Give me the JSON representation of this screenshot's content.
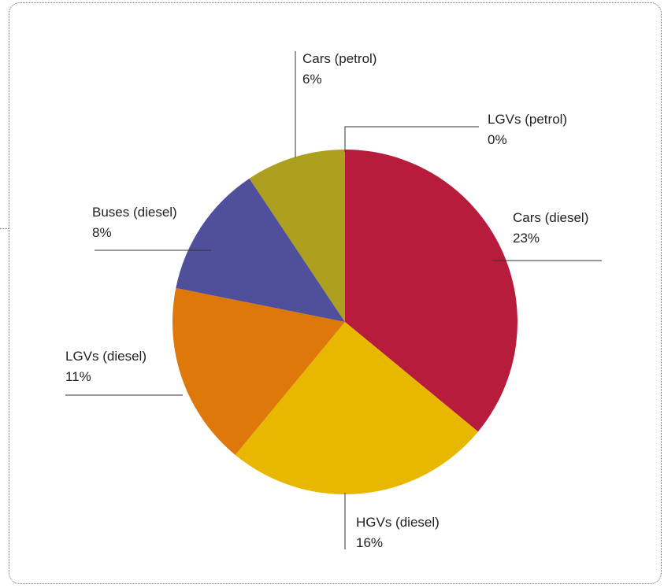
{
  "chart_data": {
    "type": "pie",
    "slices": [
      {
        "label": "LGVs (petrol)",
        "pct_label": "0%",
        "value": 0,
        "color": "#b71c3c"
      },
      {
        "label": "Cars (diesel)",
        "pct_label": "23%",
        "value": 35.4,
        "color": "#b71c3c"
      },
      {
        "label": "HGVs (diesel)",
        "pct_label": "16%",
        "value": 24.6,
        "color": "#e8b800"
      },
      {
        "label": "LGVs (diesel)",
        "pct_label": "11%",
        "value": 16.9,
        "color": "#df780b"
      },
      {
        "label": "Buses (diesel)",
        "pct_label": "8%",
        "value": 12.3,
        "color": "#4f4f9b"
      },
      {
        "label": "Cars (petrol)",
        "pct_label": "6%",
        "value": 9.2,
        "color": "#ada01f"
      }
    ]
  }
}
